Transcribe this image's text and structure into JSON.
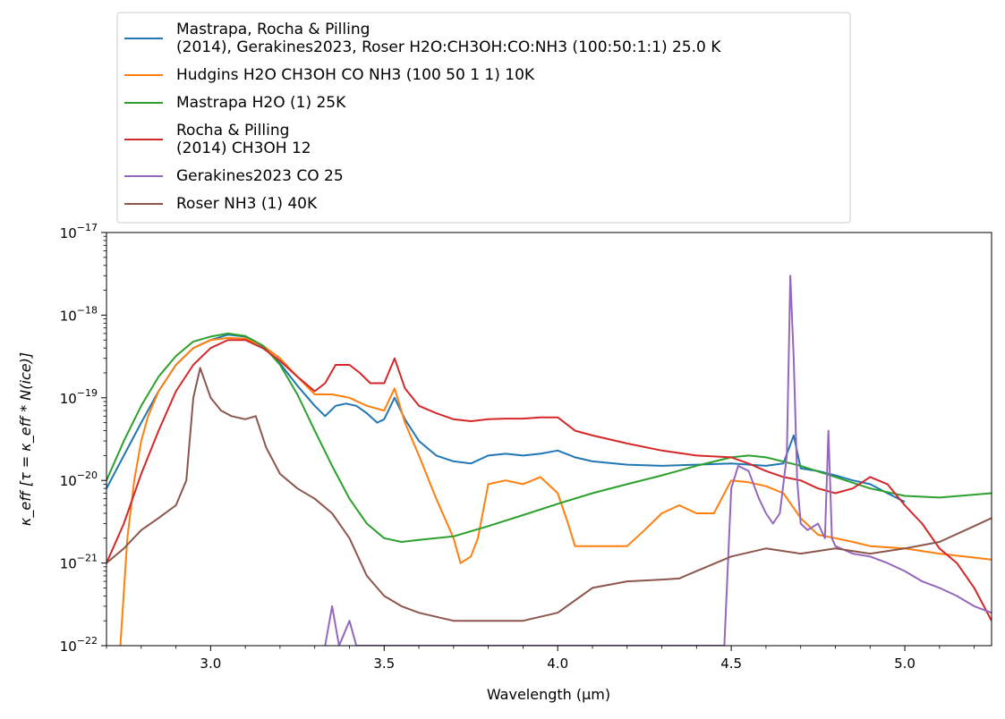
{
  "chart_data": {
    "type": "line",
    "title": "",
    "xlabel": "Wavelength (μm)",
    "ylabel": "κ_eff [τ = κ_eff * N(ice)]",
    "xlim": [
      2.7,
      5.25
    ],
    "ylim": [
      1e-22,
      1e-17
    ],
    "yscale": "log",
    "grid": false,
    "legend_position": "above plot, upper-left",
    "x_ticks": [
      3.0,
      3.5,
      4.0,
      4.5,
      5.0
    ],
    "x_tick_labels": [
      "3.0",
      "3.5",
      "4.0",
      "4.5",
      "5.0"
    ],
    "y_ticks": [
      {
        "value": 1e-22,
        "base": "10",
        "exp": "−22"
      },
      {
        "value": 1e-21,
        "base": "10",
        "exp": "−21"
      },
      {
        "value": 1e-20,
        "base": "10",
        "exp": "−20"
      },
      {
        "value": 1e-19,
        "base": "10",
        "exp": "−19"
      },
      {
        "value": 1e-18,
        "base": "10",
        "exp": "−18"
      },
      {
        "value": 1e-17,
        "base": "10",
        "exp": "−17"
      }
    ],
    "series": [
      {
        "name": "Mastrapa, Rocha & Pilling\n(2014), Gerakines2023, Roser H2O:CH3OH:CO:NH3 (100:50:1:1) 25.0 K",
        "color": "#1f77b4",
        "x": [
          2.7,
          2.75,
          2.8,
          2.85,
          2.9,
          2.95,
          3.0,
          3.05,
          3.1,
          3.15,
          3.2,
          3.25,
          3.3,
          3.33,
          3.36,
          3.39,
          3.42,
          3.45,
          3.48,
          3.5,
          3.53,
          3.56,
          3.6,
          3.65,
          3.7,
          3.75,
          3.8,
          3.85,
          3.9,
          3.95,
          4.0,
          4.05,
          4.1,
          4.2,
          4.3,
          4.4,
          4.5,
          4.6,
          4.65,
          4.68,
          4.7,
          4.75,
          4.8,
          4.85,
          4.9,
          4.95,
          5.0
        ],
        "values": [
          8e-21,
          2e-20,
          5e-20,
          1.2e-19,
          2.5e-19,
          4e-19,
          5e-19,
          5.8e-19,
          5.5e-19,
          4.2e-19,
          2.6e-19,
          1.4e-19,
          8e-20,
          6e-20,
          8e-20,
          8.5e-20,
          8e-20,
          6.5e-20,
          5e-20,
          5.5e-20,
          1e-19,
          5.5e-20,
          3e-20,
          2e-20,
          1.7e-20,
          1.6e-20,
          2e-20,
          2.1e-20,
          2e-20,
          2.1e-20,
          2.3e-20,
          1.9e-20,
          1.7e-20,
          1.55e-20,
          1.5e-20,
          1.55e-20,
          1.6e-20,
          1.5e-20,
          1.6e-20,
          3.5e-20,
          1.4e-20,
          1.3e-20,
          1.15e-20,
          1e-20,
          9e-21,
          7e-21,
          5.5e-21
        ]
      },
      {
        "name": "Hudgins H2O CH3OH CO NH3 (100 50 1 1) 10K",
        "color": "#ff7f0e",
        "x": [
          2.74,
          2.76,
          2.78,
          2.8,
          2.82,
          2.85,
          2.9,
          2.95,
          3.0,
          3.05,
          3.1,
          3.15,
          3.2,
          3.25,
          3.3,
          3.35,
          3.4,
          3.45,
          3.5,
          3.53,
          3.56,
          3.6,
          3.65,
          3.7,
          3.72,
          3.75,
          3.77,
          3.8,
          3.85,
          3.9,
          3.95,
          4.0,
          4.03,
          4.05,
          4.1,
          4.2,
          4.25,
          4.3,
          4.35,
          4.4,
          4.45,
          4.5,
          4.55,
          4.6,
          4.65,
          4.7,
          4.75,
          4.8,
          4.85,
          4.9,
          5.0,
          5.1,
          5.25
        ],
        "values": [
          1e-22,
          2e-21,
          1e-20,
          3e-20,
          6e-20,
          1.2e-19,
          2.5e-19,
          4e-19,
          5e-19,
          5.3e-19,
          5.2e-19,
          4.3e-19,
          3e-19,
          1.8e-19,
          1.1e-19,
          1.1e-19,
          1e-19,
          8e-20,
          7e-20,
          1.3e-19,
          5e-20,
          2e-20,
          6e-21,
          2e-21,
          1e-21,
          1.2e-21,
          2e-21,
          9e-21,
          1e-20,
          9e-21,
          1.1e-20,
          7e-21,
          3e-21,
          1.6e-21,
          1.6e-21,
          1.6e-21,
          2.5e-21,
          4e-21,
          5e-21,
          4e-21,
          4e-21,
          1e-20,
          9.5e-21,
          8.5e-21,
          7e-21,
          3.5e-21,
          2.2e-21,
          2e-21,
          1.8e-21,
          1.6e-21,
          1.5e-21,
          1.3e-21,
          1.1e-21
        ]
      },
      {
        "name": "Mastrapa H2O (1) 25K",
        "color": "#2ca02c",
        "x": [
          2.7,
          2.75,
          2.8,
          2.85,
          2.9,
          2.95,
          3.0,
          3.05,
          3.1,
          3.15,
          3.2,
          3.25,
          3.3,
          3.35,
          3.4,
          3.45,
          3.5,
          3.55,
          3.6,
          3.7,
          3.8,
          3.9,
          4.0,
          4.1,
          4.2,
          4.3,
          4.4,
          4.5,
          4.55,
          4.6,
          4.7,
          4.8,
          4.9,
          5.0,
          5.1,
          5.25
        ],
        "values": [
          1e-20,
          3e-20,
          8e-20,
          1.8e-19,
          3.2e-19,
          4.8e-19,
          5.5e-19,
          6e-19,
          5.6e-19,
          4.3e-19,
          2.5e-19,
          1.1e-19,
          4e-20,
          1.5e-20,
          6e-21,
          3e-21,
          2e-21,
          1.8e-21,
          1.9e-21,
          2.1e-21,
          2.8e-21,
          3.8e-21,
          5.2e-21,
          7e-21,
          9e-21,
          1.15e-20,
          1.5e-20,
          1.9e-20,
          2e-20,
          1.9e-20,
          1.5e-20,
          1.1e-20,
          8e-21,
          6.5e-21,
          6.2e-21,
          7e-21
        ]
      },
      {
        "name": "Rocha & Pilling\n(2014) CH3OH 12",
        "color": "#d62728",
        "x": [
          2.7,
          2.75,
          2.8,
          2.85,
          2.9,
          2.95,
          3.0,
          3.05,
          3.1,
          3.15,
          3.2,
          3.25,
          3.3,
          3.33,
          3.36,
          3.4,
          3.43,
          3.46,
          3.5,
          3.53,
          3.56,
          3.6,
          3.65,
          3.7,
          3.75,
          3.8,
          3.85,
          3.9,
          3.95,
          4.0,
          4.05,
          4.1,
          4.2,
          4.3,
          4.4,
          4.5,
          4.55,
          4.6,
          4.65,
          4.7,
          4.75,
          4.8,
          4.85,
          4.9,
          4.95,
          5.0,
          5.05,
          5.1,
          5.15,
          5.2,
          5.25
        ],
        "values": [
          1e-21,
          3e-21,
          1.2e-20,
          4e-20,
          1.2e-19,
          2.5e-19,
          4e-19,
          5e-19,
          5e-19,
          4e-19,
          2.8e-19,
          1.8e-19,
          1.2e-19,
          1.5e-19,
          2.5e-19,
          2.5e-19,
          2e-19,
          1.5e-19,
          1.5e-19,
          3e-19,
          1.3e-19,
          8e-20,
          6.5e-20,
          5.5e-20,
          5.2e-20,
          5.5e-20,
          5.6e-20,
          5.6e-20,
          5.8e-20,
          5.8e-20,
          4e-20,
          3.5e-20,
          2.8e-20,
          2.3e-20,
          2e-20,
          1.9e-20,
          1.6e-20,
          1.3e-20,
          1.1e-20,
          1e-20,
          8e-21,
          7e-21,
          8e-21,
          1.1e-20,
          9e-21,
          5e-21,
          3e-21,
          1.5e-21,
          1e-21,
          5e-22,
          2e-22
        ]
      },
      {
        "name": "Gerakines2023 CO 25",
        "color": "#9467bd",
        "x": [
          3.33,
          3.35,
          3.37,
          3.4,
          3.42,
          4.48,
          4.5,
          4.52,
          4.55,
          4.58,
          4.6,
          4.62,
          4.64,
          4.66,
          4.67,
          4.68,
          4.69,
          4.7,
          4.72,
          4.75,
          4.77,
          4.78,
          4.79,
          4.8,
          4.85,
          4.9,
          4.95,
          5.0,
          5.05,
          5.1,
          5.15,
          5.2,
          5.25
        ],
        "values": [
          1e-22,
          3e-22,
          1e-22,
          2e-22,
          1e-22,
          1e-22,
          8e-21,
          1.5e-20,
          1.3e-20,
          6e-21,
          4e-21,
          3e-21,
          4e-21,
          2e-20,
          3e-18,
          3e-19,
          1e-20,
          3e-21,
          2.5e-21,
          3e-21,
          2e-21,
          4e-20,
          2e-21,
          1.6e-21,
          1.3e-21,
          1.2e-21,
          1e-21,
          8e-22,
          6e-22,
          5e-22,
          4e-22,
          3e-22,
          2.5e-22
        ]
      },
      {
        "name": "Roser NH3 (1) 40K",
        "color": "#8c564b",
        "x": [
          2.7,
          2.75,
          2.8,
          2.85,
          2.9,
          2.93,
          2.95,
          2.97,
          3.0,
          3.03,
          3.06,
          3.1,
          3.13,
          3.16,
          3.2,
          3.25,
          3.3,
          3.35,
          3.4,
          3.45,
          3.5,
          3.55,
          3.6,
          3.7,
          3.8,
          3.9,
          4.0,
          4.1,
          4.2,
          4.3,
          4.35,
          4.4,
          4.5,
          4.6,
          4.7,
          4.8,
          4.9,
          5.0,
          5.1,
          5.2,
          5.25
        ],
        "values": [
          1e-21,
          1.5e-21,
          2.5e-21,
          3.5e-21,
          5e-21,
          1e-20,
          1e-19,
          2.3e-19,
          1e-19,
          7e-20,
          6e-20,
          5.5e-20,
          6e-20,
          2.5e-20,
          1.2e-20,
          8e-21,
          6e-21,
          4e-21,
          2e-21,
          7e-22,
          4e-22,
          3e-22,
          2.5e-22,
          2e-22,
          2e-22,
          2e-22,
          2.5e-22,
          5e-22,
          6e-22,
          6.3e-22,
          6.5e-22,
          8e-22,
          1.2e-21,
          1.5e-21,
          1.3e-21,
          1.5e-21,
          1.3e-21,
          1.5e-21,
          1.8e-21,
          2.8e-21,
          3.5e-21
        ]
      }
    ]
  }
}
